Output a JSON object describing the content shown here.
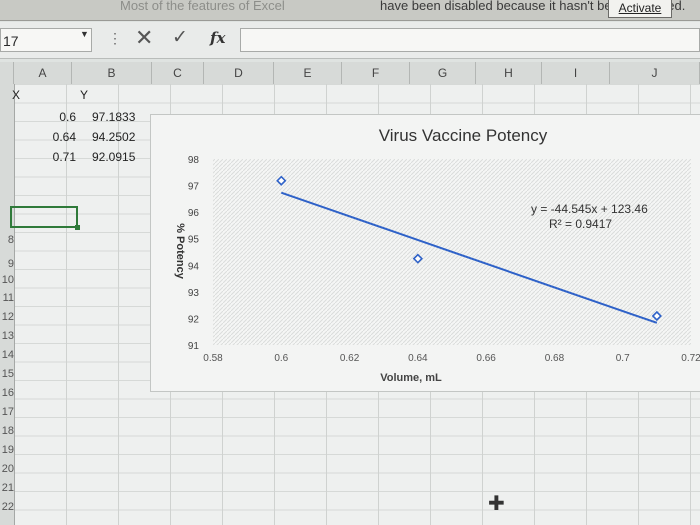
{
  "notice": {
    "faded_text": "Most of the features of Excel",
    "text": "have been disabled because it hasn't been activated.",
    "activate_label": "Activate"
  },
  "formula_bar": {
    "name_box": "17",
    "fx_label": "fx",
    "formula": ""
  },
  "columns": [
    "A",
    "B",
    "C",
    "D",
    "E",
    "F",
    "G",
    "H",
    "I",
    "J"
  ],
  "rows": [
    "",
    "",
    "",
    "",
    "",
    "",
    "8",
    "9",
    "10",
    "11",
    "12",
    "13",
    "14",
    "15",
    "16",
    "17",
    "18",
    "19",
    "20",
    "21",
    "22"
  ],
  "cells": {
    "header_x": "X",
    "header_y": "Y",
    "data": [
      {
        "x": "0.6",
        "y": "97.1833"
      },
      {
        "x": "0.64",
        "y": "94.2502"
      },
      {
        "x": "0.71",
        "y": "92.0915"
      }
    ]
  },
  "chart_data": {
    "type": "scatter",
    "title": "Virus Vaccine Potency",
    "xlabel": "Volume, mL",
    "ylabel": "% Potency",
    "xlim": [
      0.58,
      0.72
    ],
    "ylim": [
      91,
      98
    ],
    "xticks": [
      "0.58",
      "0.6",
      "0.62",
      "0.64",
      "0.66",
      "0.68",
      "0.7",
      "0.72"
    ],
    "yticks": [
      "91",
      "92",
      "93",
      "94",
      "95",
      "96",
      "97",
      "98"
    ],
    "series": [
      {
        "points": [
          [
            0.6,
            97.1833
          ],
          [
            0.64,
            94.2502
          ],
          [
            0.71,
            92.0915
          ]
        ]
      }
    ],
    "trendline": {
      "slope": -44.545,
      "intercept": 123.46,
      "x_range": [
        0.6,
        0.71
      ]
    },
    "equation_label": "y = -44.545x + 123.46",
    "r2_label": "R² = 0.9417",
    "grid": false,
    "marker_color": "#2f62c8",
    "line_color": "#2f62c8"
  }
}
